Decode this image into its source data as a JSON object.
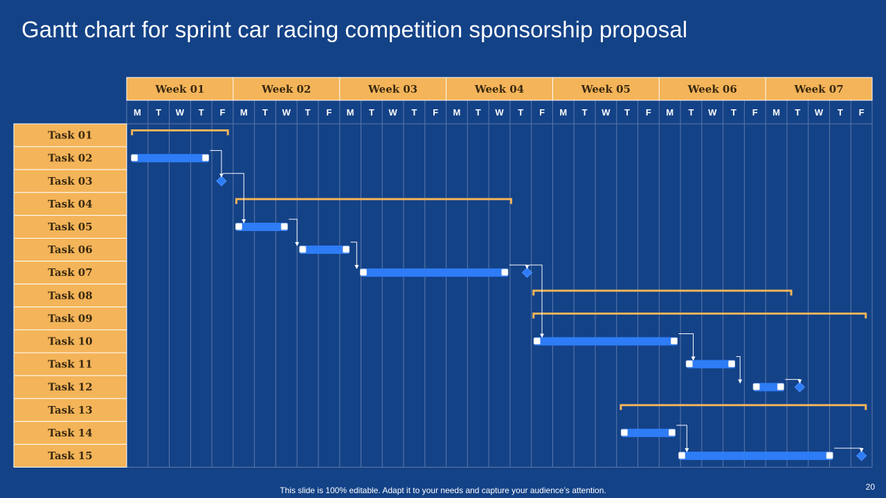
{
  "slide": {
    "title": "Gantt chart for sprint car racing competition sponsorship proposal",
    "footer": "This slide is 100% editable. Adapt it to your needs and capture your audience’s attention.",
    "page_number": "20"
  },
  "colors": {
    "background": "#144287",
    "header_fill": "#F4B459",
    "grid_line": "#5D7AA8",
    "bar": "#2E7CF6",
    "summary": "#F4B459",
    "connector": "#FFFFFF"
  },
  "chart_data": {
    "type": "gantt",
    "weeks": [
      "Week 01",
      "Week 02",
      "Week 03",
      "Week 04",
      "Week 05",
      "Week 06",
      "Week 07"
    ],
    "days": [
      "M",
      "T",
      "W",
      "T",
      "F"
    ],
    "tasks": [
      "Task 01",
      "Task 02",
      "Task 03",
      "Task 04",
      "Task 05",
      "Task 06",
      "Task 07",
      "Task 08",
      "Task 09",
      "Task 10",
      "Task 11",
      "Task 12",
      "Task 13",
      "Task 14",
      "Task 15"
    ],
    "items": [
      {
        "task": 0,
        "kind": "summary",
        "start": 0.25,
        "end": 4.75
      },
      {
        "task": 1,
        "kind": "bar",
        "start": 0.25,
        "end": 3.85
      },
      {
        "task": 2,
        "kind": "milestone",
        "at": 4.45
      },
      {
        "task": 3,
        "kind": "summary",
        "start": 5.15,
        "end": 18.05
      },
      {
        "task": 4,
        "kind": "bar",
        "start": 5.15,
        "end": 7.55
      },
      {
        "task": 5,
        "kind": "bar",
        "start": 8.15,
        "end": 10.45
      },
      {
        "task": 6,
        "kind": "bar",
        "start": 11.0,
        "end": 17.9
      },
      {
        "task": 6,
        "kind": "milestone",
        "at": 18.8
      },
      {
        "task": 7,
        "kind": "summary",
        "start": 19.1,
        "end": 31.2
      },
      {
        "task": 8,
        "kind": "summary",
        "start": 19.1,
        "end": 34.7
      },
      {
        "task": 9,
        "kind": "bar",
        "start": 19.15,
        "end": 25.85
      },
      {
        "task": 10,
        "kind": "bar",
        "start": 26.3,
        "end": 28.55
      },
      {
        "task": 11,
        "kind": "bar",
        "start": 29.45,
        "end": 30.85
      },
      {
        "task": 11,
        "kind": "milestone",
        "at": 31.6
      },
      {
        "task": 12,
        "kind": "summary",
        "start": 23.2,
        "end": 34.7
      },
      {
        "task": 13,
        "kind": "bar",
        "start": 23.25,
        "end": 25.75
      },
      {
        "task": 14,
        "kind": "bar",
        "start": 25.95,
        "end": 33.15
      },
      {
        "task": 14,
        "kind": "milestone",
        "at": 34.5
      }
    ],
    "dependencies": [
      {
        "from": [
          1,
          3.85
        ],
        "to": [
          2,
          4.45
        ]
      },
      {
        "from": [
          2,
          4.45
        ],
        "to": [
          4,
          5.5
        ]
      },
      {
        "from": [
          4,
          7.55
        ],
        "to": [
          5,
          8.0
        ]
      },
      {
        "from": [
          5,
          10.45
        ],
        "to": [
          6,
          10.8
        ]
      },
      {
        "from": [
          6,
          17.9
        ],
        "to": [
          6,
          18.8
        ]
      },
      {
        "from": [
          6,
          18.8
        ],
        "to": [
          9,
          19.5
        ]
      },
      {
        "from": [
          9,
          25.85
        ],
        "to": [
          10,
          26.6
        ]
      },
      {
        "from": [
          10,
          28.55
        ],
        "to": [
          11,
          28.8
        ]
      },
      {
        "from": [
          11,
          30.85
        ],
        "to": [
          11,
          31.6
        ]
      },
      {
        "from": [
          13,
          25.75
        ],
        "to": [
          14,
          26.3
        ]
      },
      {
        "from": [
          14,
          33.15
        ],
        "to": [
          14,
          34.5
        ]
      }
    ]
  }
}
